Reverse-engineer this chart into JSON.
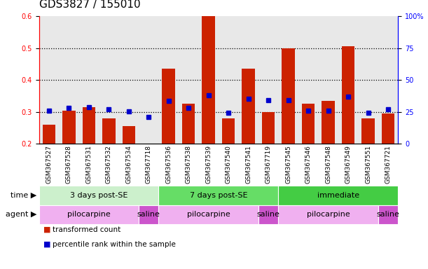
{
  "title": "GDS3827 / 155010",
  "samples": [
    "GSM367527",
    "GSM367528",
    "GSM367531",
    "GSM367532",
    "GSM367534",
    "GSM367718",
    "GSM367536",
    "GSM367538",
    "GSM367539",
    "GSM367540",
    "GSM367541",
    "GSM367719",
    "GSM367545",
    "GSM367546",
    "GSM367548",
    "GSM367549",
    "GSM367551",
    "GSM367721"
  ],
  "red_values": [
    0.26,
    0.305,
    0.315,
    0.28,
    0.255,
    0.2,
    0.435,
    0.325,
    0.6,
    0.28,
    0.435,
    0.3,
    0.5,
    0.325,
    0.335,
    0.505,
    0.28,
    0.295
  ],
  "blue_values": [
    0.303,
    0.313,
    0.315,
    0.308,
    0.302,
    0.285,
    0.335,
    0.312,
    0.352,
    0.298,
    0.342,
    0.336,
    0.338,
    0.303,
    0.303,
    0.348,
    0.298,
    0.308
  ],
  "ylim_left": [
    0.2,
    0.6
  ],
  "ylim_right": [
    0,
    100
  ],
  "yticks_left": [
    0.2,
    0.3,
    0.4,
    0.5,
    0.6
  ],
  "yticks_right": [
    0,
    25,
    50,
    75,
    100
  ],
  "ytick_labels_right": [
    "0",
    "25",
    "50",
    "75",
    "100%"
  ],
  "hlines": [
    0.3,
    0.4,
    0.5
  ],
  "time_groups": [
    {
      "label": "3 days post-SE",
      "start": 0,
      "end": 6,
      "color": "#ccf0cc"
    },
    {
      "label": "7 days post-SE",
      "start": 6,
      "end": 12,
      "color": "#66dd66"
    },
    {
      "label": "immediate",
      "start": 12,
      "end": 18,
      "color": "#44cc44"
    }
  ],
  "agent_groups": [
    {
      "label": "pilocarpine",
      "start": 0,
      "end": 5,
      "color": "#f0b0f0"
    },
    {
      "label": "saline",
      "start": 5,
      "end": 6,
      "color": "#cc55cc"
    },
    {
      "label": "pilocarpine",
      "start": 6,
      "end": 11,
      "color": "#f0b0f0"
    },
    {
      "label": "saline",
      "start": 11,
      "end": 12,
      "color": "#cc55cc"
    },
    {
      "label": "pilocarpine",
      "start": 12,
      "end": 17,
      "color": "#f0b0f0"
    },
    {
      "label": "saline",
      "start": 17,
      "end": 18,
      "color": "#cc55cc"
    }
  ],
  "bar_color": "#cc2200",
  "dot_color": "#0000cc",
  "bar_width": 0.65,
  "bar_bottom": 0.2,
  "title_fontsize": 11,
  "tick_fontsize": 7,
  "label_fontsize": 8,
  "legend_fontsize": 7.5,
  "sample_label_fontsize": 6.5
}
